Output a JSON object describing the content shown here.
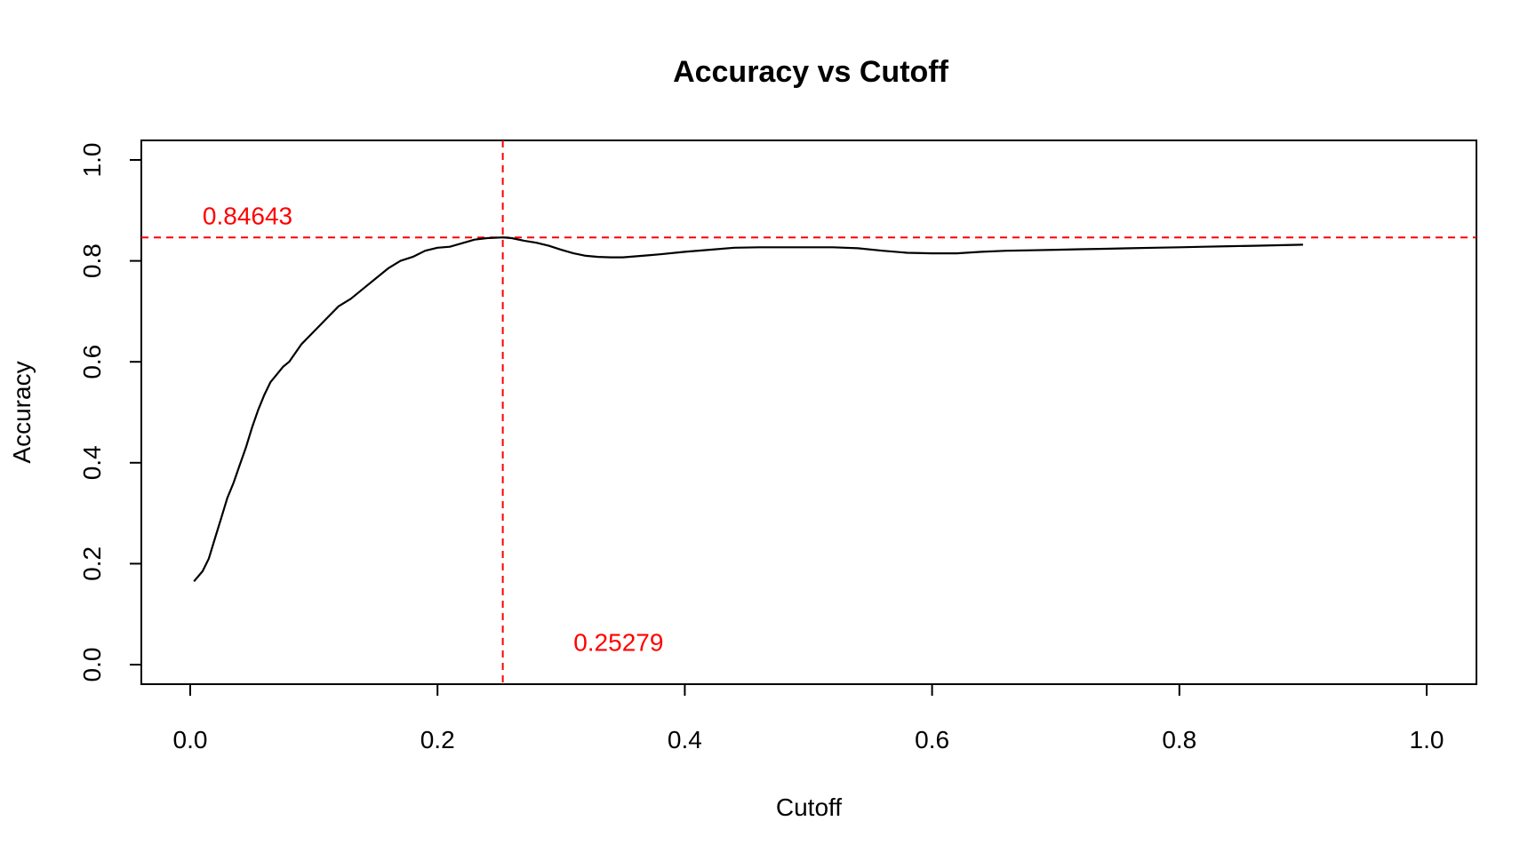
{
  "chart_data": {
    "type": "line",
    "title": "Accuracy vs Cutoff",
    "xlabel": "Cutoff",
    "ylabel": "Accuracy",
    "xlim": [
      0.0,
      1.0
    ],
    "ylim": [
      0.0,
      1.0
    ],
    "x_ticks": [
      "0.0",
      "0.2",
      "0.4",
      "0.6",
      "0.8",
      "1.0"
    ],
    "y_ticks": [
      "0.0",
      "0.2",
      "0.4",
      "0.6",
      "0.8",
      "1.0"
    ],
    "grid": false,
    "series": [
      {
        "color": "#000000",
        "x": [
          0.003,
          0.01,
          0.015,
          0.02,
          0.025,
          0.03,
          0.035,
          0.04,
          0.045,
          0.05,
          0.055,
          0.06,
          0.065,
          0.07,
          0.075,
          0.08,
          0.09,
          0.1,
          0.11,
          0.12,
          0.13,
          0.14,
          0.15,
          0.16,
          0.17,
          0.18,
          0.19,
          0.2,
          0.21,
          0.22,
          0.23,
          0.24,
          0.25279,
          0.26,
          0.27,
          0.28,
          0.29,
          0.3,
          0.31,
          0.32,
          0.33,
          0.34,
          0.35,
          0.36,
          0.37,
          0.38,
          0.4,
          0.42,
          0.44,
          0.46,
          0.48,
          0.5,
          0.52,
          0.54,
          0.56,
          0.58,
          0.6,
          0.62,
          0.64,
          0.66,
          0.68,
          0.7,
          0.72,
          0.74,
          0.76,
          0.78,
          0.8,
          0.82,
          0.84,
          0.86,
          0.88,
          0.9
        ],
        "y": [
          0.165,
          0.185,
          0.21,
          0.25,
          0.29,
          0.33,
          0.36,
          0.395,
          0.43,
          0.47,
          0.505,
          0.535,
          0.56,
          0.575,
          0.59,
          0.6,
          0.635,
          0.66,
          0.685,
          0.71,
          0.725,
          0.745,
          0.765,
          0.785,
          0.8,
          0.808,
          0.82,
          0.826,
          0.828,
          0.835,
          0.842,
          0.845,
          0.84643,
          0.845,
          0.84,
          0.836,
          0.83,
          0.822,
          0.815,
          0.81,
          0.808,
          0.807,
          0.807,
          0.809,
          0.811,
          0.813,
          0.818,
          0.822,
          0.826,
          0.827,
          0.827,
          0.827,
          0.827,
          0.825,
          0.82,
          0.816,
          0.815,
          0.815,
          0.818,
          0.82,
          0.821,
          0.822,
          0.823,
          0.824,
          0.825,
          0.826,
          0.827,
          0.828,
          0.829,
          0.83,
          0.831,
          0.832
        ]
      }
    ],
    "reference_lines": {
      "color": "#ff0000",
      "horizontal": {
        "y": 0.84643,
        "label": "0.84643",
        "label_x": 0.01,
        "label_y": 0.89
      },
      "vertical": {
        "x": 0.25279,
        "label": "0.25279",
        "label_x": 0.31,
        "label_y": 0.045
      }
    }
  }
}
